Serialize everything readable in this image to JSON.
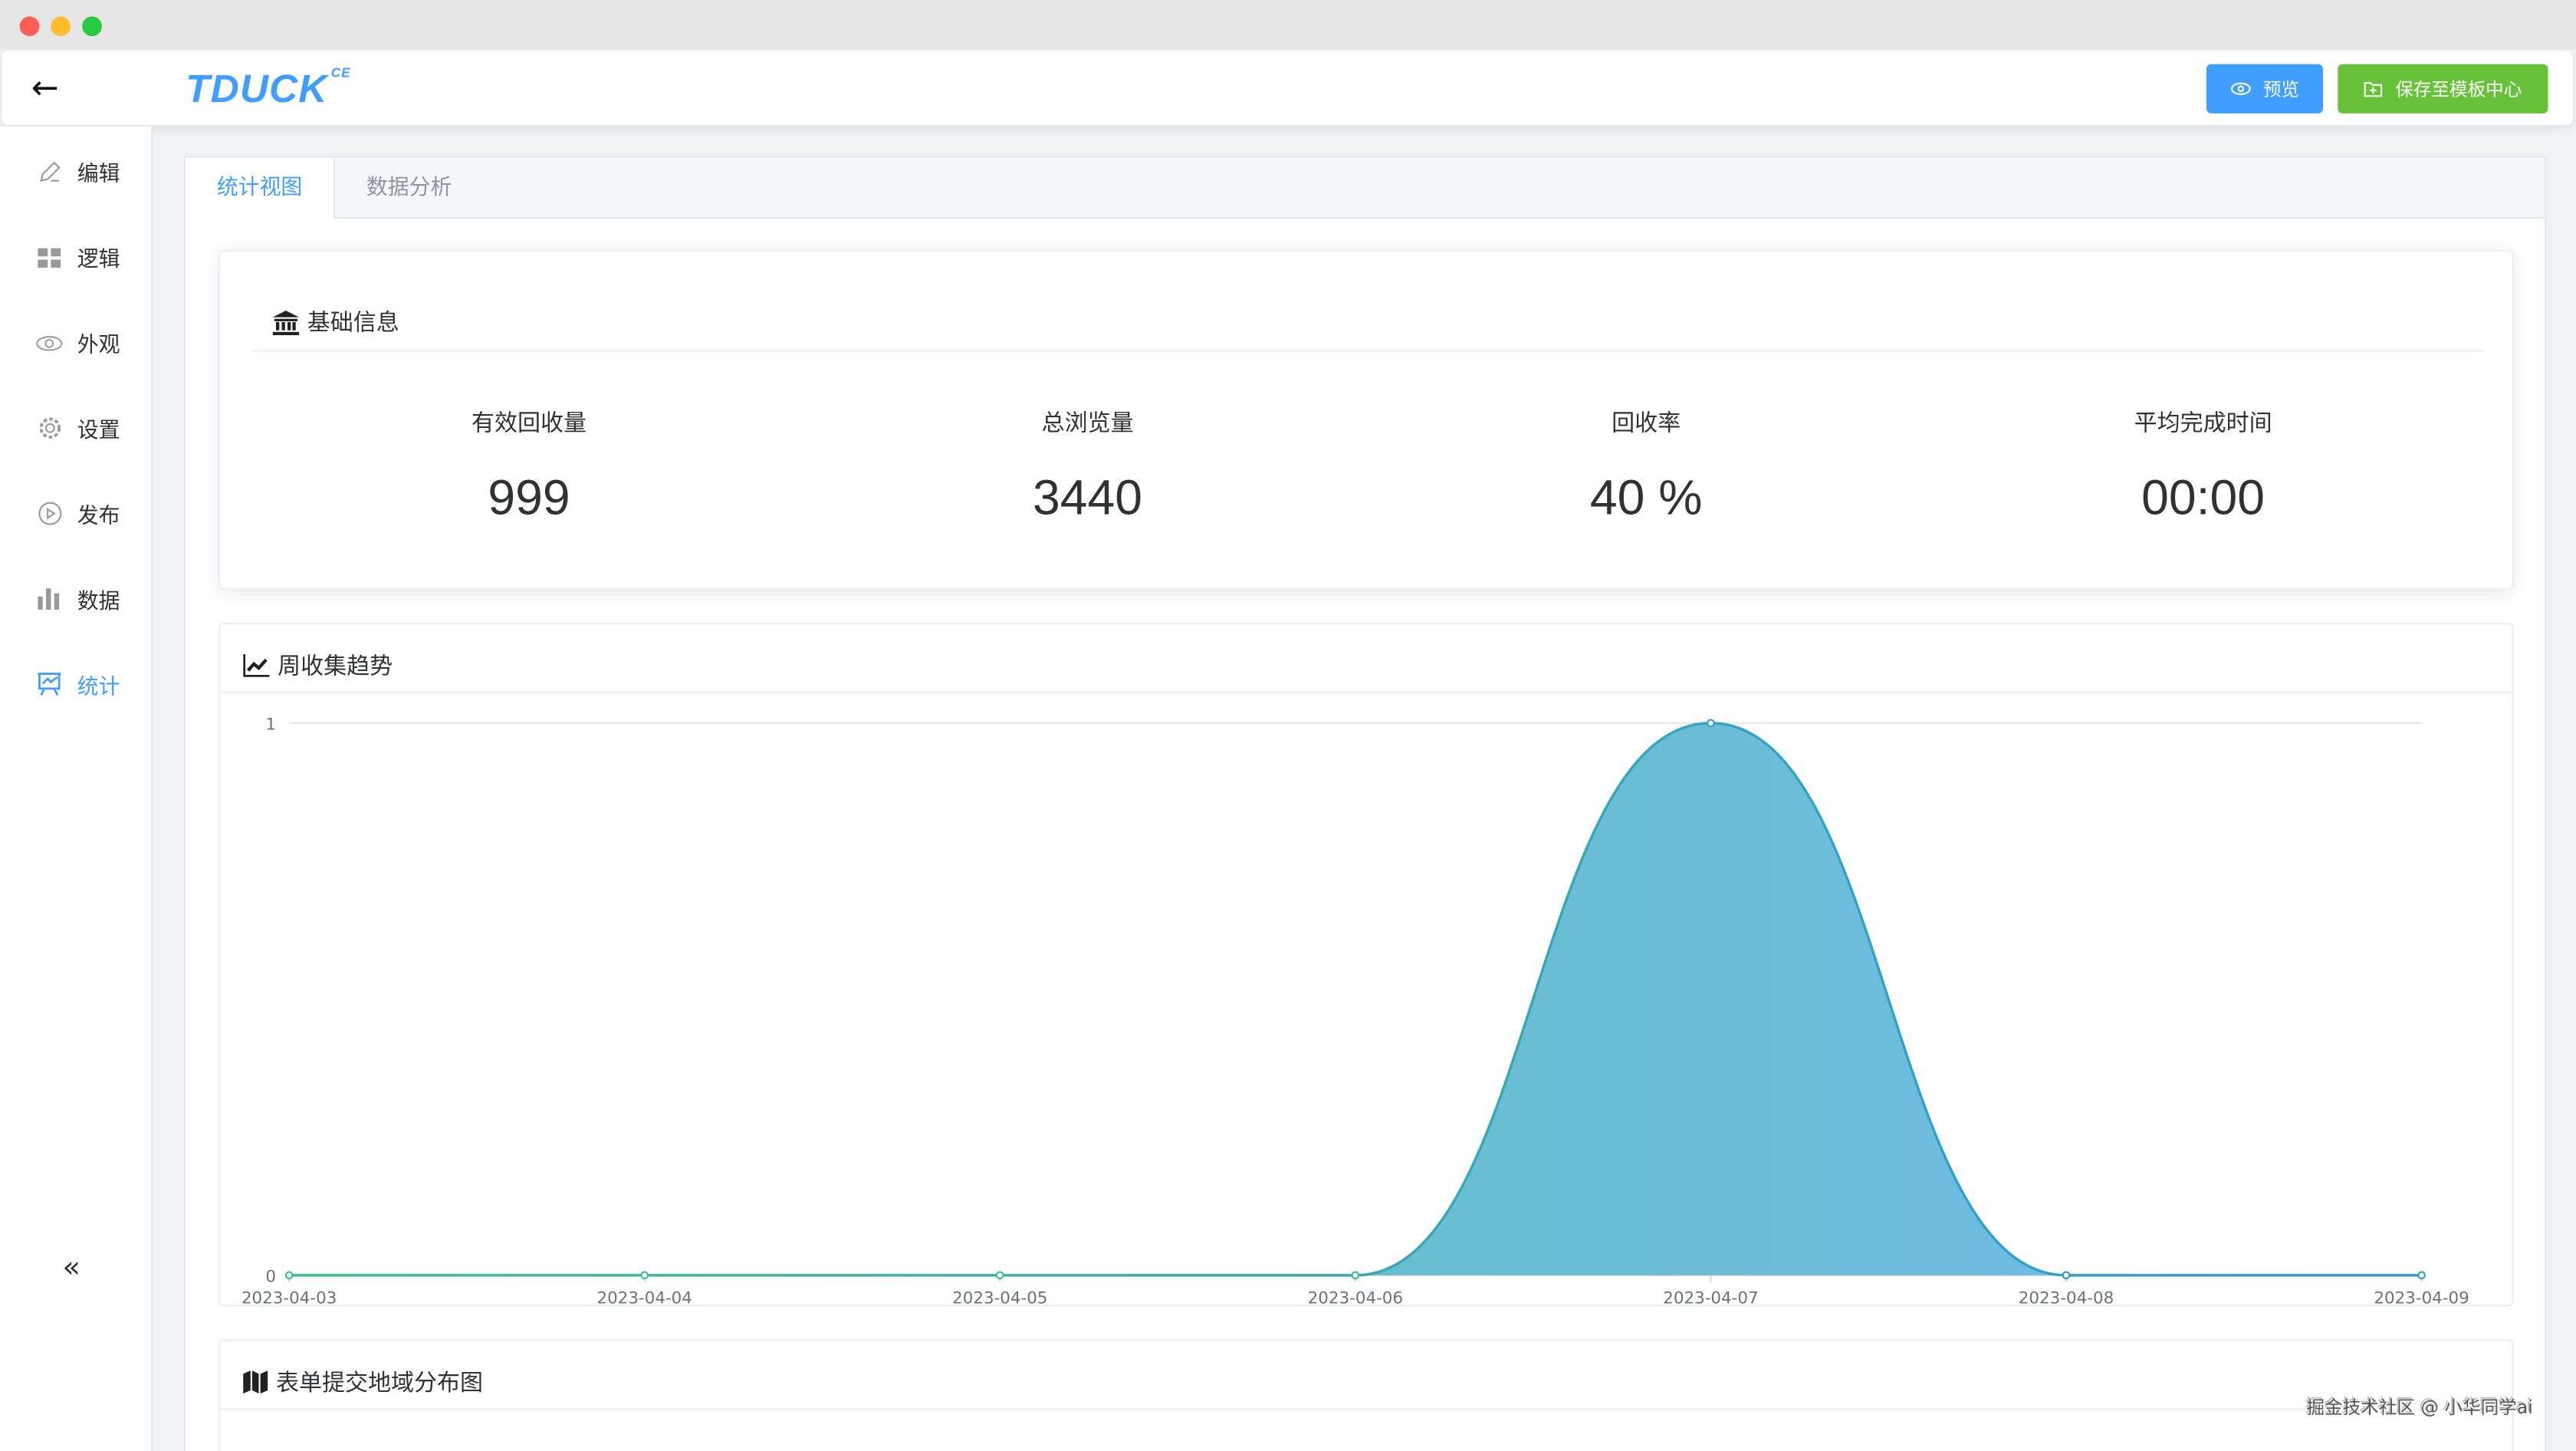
{
  "header": {
    "logo": "TDUCK",
    "logo_sup": "CE",
    "preview_label": "预览",
    "save_template_label": "保存至模板中心"
  },
  "sidebar": {
    "items": [
      {
        "label": "编辑",
        "icon": "pencil-icon"
      },
      {
        "label": "逻辑",
        "icon": "grid-icon"
      },
      {
        "label": "外观",
        "icon": "eye-icon"
      },
      {
        "label": "设置",
        "icon": "gear-icon"
      },
      {
        "label": "发布",
        "icon": "play-circle-icon"
      },
      {
        "label": "数据",
        "icon": "bar-chart-icon"
      },
      {
        "label": "统计",
        "icon": "presentation-chart-icon",
        "active": true
      }
    ]
  },
  "tabs": [
    {
      "label": "统计视图",
      "active": true
    },
    {
      "label": "数据分析"
    }
  ],
  "basic": {
    "title": "基础信息",
    "stats": [
      {
        "label": "有效回收量",
        "value": "999"
      },
      {
        "label": "总浏览量",
        "value": "3440"
      },
      {
        "label": "回收率",
        "value": "40 %"
      },
      {
        "label": "平均完成时间",
        "value": "00:00"
      }
    ]
  },
  "trend": {
    "title": "周收集趋势"
  },
  "region": {
    "title": "表单提交地域分布图"
  },
  "watermark": "掘金技术社区 @ 小华同学ai",
  "colors": {
    "primary": "#409eff",
    "success": "#67c23a"
  },
  "chart_data": {
    "type": "area",
    "smooth": true,
    "x": [
      "2023-04-03",
      "2023-04-04",
      "2023-04-05",
      "2023-04-06",
      "2023-04-07",
      "2023-04-08",
      "2023-04-09"
    ],
    "values": [
      0,
      0,
      0,
      0,
      1,
      0,
      0
    ],
    "ylim": [
      0,
      1
    ],
    "yticks": [
      "0",
      "1"
    ],
    "grid": true
  }
}
